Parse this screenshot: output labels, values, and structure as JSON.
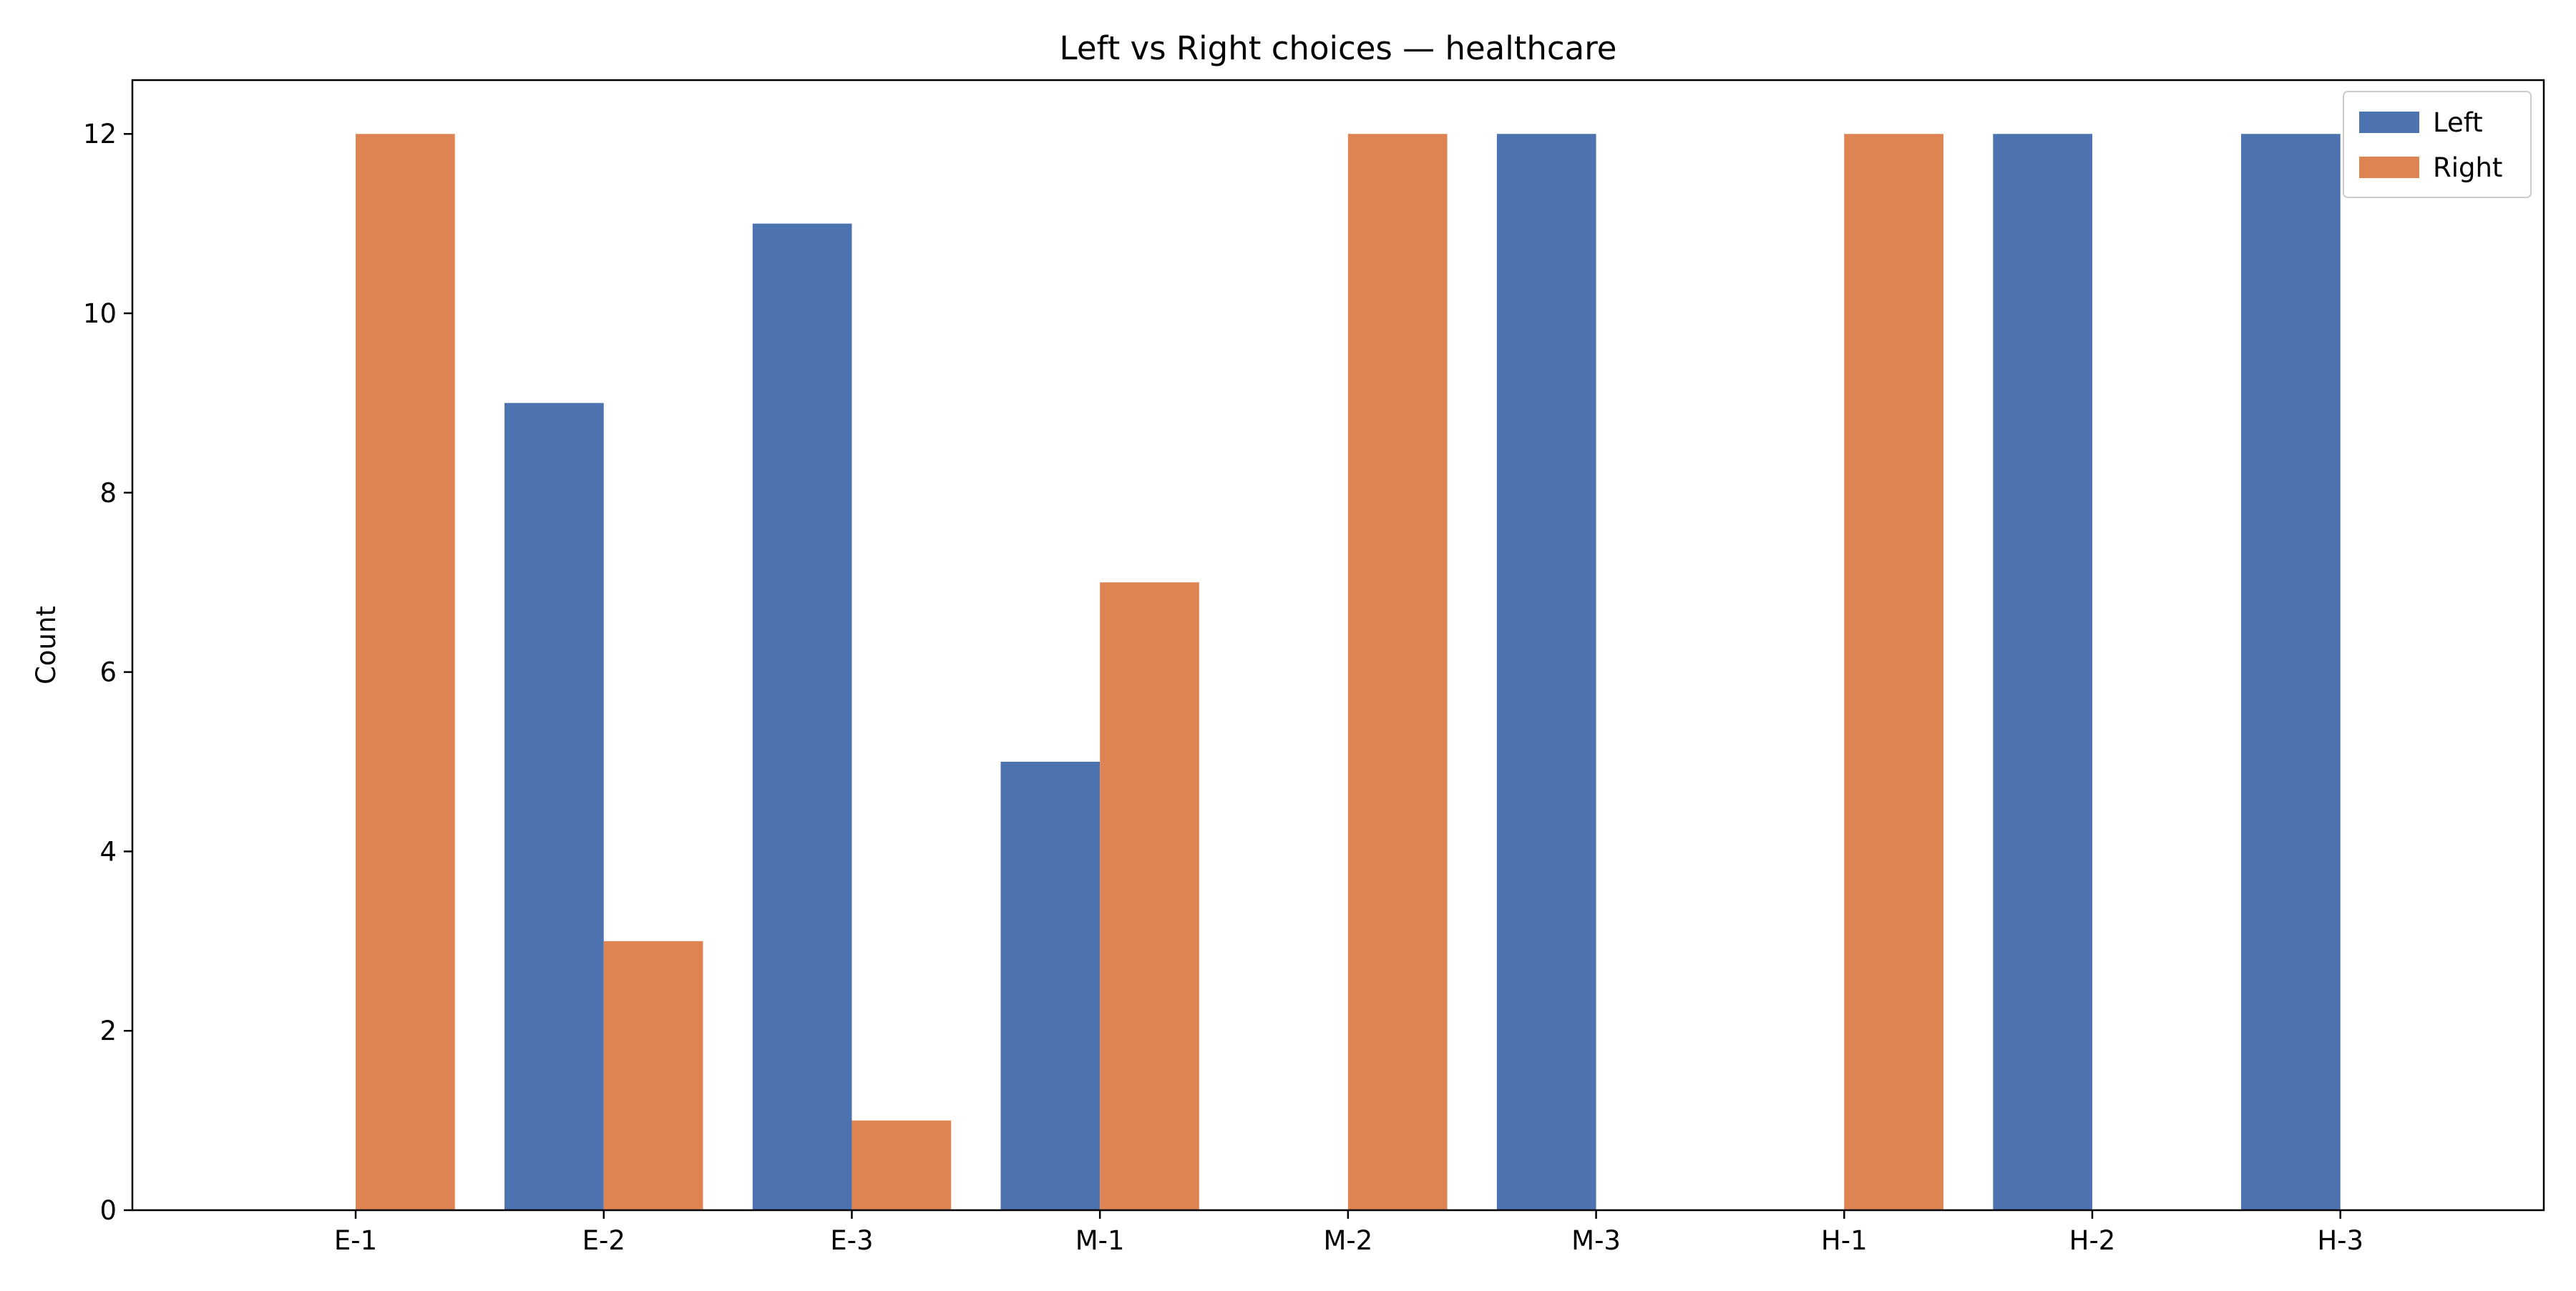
{
  "chart_data": {
    "type": "bar",
    "title": "Left vs Right choices — healthcare",
    "xlabel": "",
    "ylabel": "Count",
    "categories": [
      "E-1",
      "E-2",
      "E-3",
      "M-1",
      "M-2",
      "M-3",
      "H-1",
      "H-2",
      "H-3"
    ],
    "series": [
      {
        "name": "Left",
        "color": "#4c72b0",
        "values": [
          0,
          9,
          11,
          5,
          0,
          12,
          0,
          12,
          12
        ]
      },
      {
        "name": "Right",
        "color": "#dd8452",
        "values": [
          12,
          3,
          1,
          7,
          12,
          0,
          12,
          0,
          0
        ]
      }
    ],
    "ylim": [
      0,
      12.6
    ],
    "yticks": [
      0,
      2,
      4,
      6,
      8,
      10,
      12
    ],
    "grid": false,
    "legend_position": "top-right"
  }
}
